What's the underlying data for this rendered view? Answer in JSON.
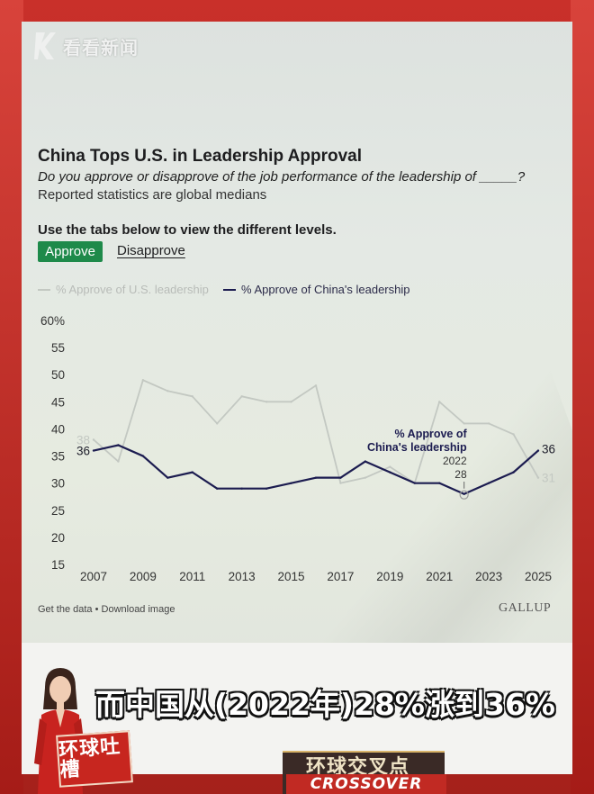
{
  "watermark": {
    "text": "看看新闻"
  },
  "chart_header": {
    "title": "China Tops U.S. in Leadership Approval",
    "question": "Do you approve or disapprove of the job performance of the leadership of _____?",
    "note": "Reported statistics are global medians",
    "instruction": "Use the tabs below to view the different levels."
  },
  "tabs": {
    "approve": "Approve",
    "disapprove": "Disapprove"
  },
  "footer": {
    "links": "Get the data • Download image",
    "brand": "GALLUP"
  },
  "caption": "而中国从(2022年)28%涨到36%",
  "program": {
    "badge": "环球吐槽",
    "brand_top": "环球交叉点",
    "brand_bottom": "CROSSOVER"
  },
  "colors": {
    "china": "#1c1c50",
    "us": "#c3c8c2",
    "approve_tab": "#1e8a4a",
    "frame": "#b8211c"
  },
  "chart_data": {
    "type": "line",
    "x": [
      2007,
      2008,
      2009,
      2010,
      2011,
      2012,
      2013,
      2014,
      2015,
      2016,
      2017,
      2018,
      2019,
      2020,
      2021,
      2022,
      2023,
      2024,
      2025
    ],
    "series": [
      {
        "name": "% Approve of U.S. leadership",
        "values": [
          38,
          34,
          49,
          47,
          46,
          41,
          46,
          45,
          45,
          48,
          30,
          31,
          33,
          30,
          45,
          41,
          41,
          39,
          31
        ]
      },
      {
        "name": "% Approve of China's leadership",
        "values": [
          36,
          37,
          35,
          31,
          32,
          29,
          29,
          29,
          30,
          31,
          31,
          34,
          32,
          30,
          30,
          28,
          30,
          32,
          36
        ]
      }
    ],
    "yticks": [
      "60%",
      "55",
      "50",
      "45",
      "40",
      "35",
      "30",
      "25",
      "20",
      "15"
    ],
    "xticks": [
      "2007",
      "2009",
      "2011",
      "2013",
      "2015",
      "2017",
      "2019",
      "2021",
      "2023",
      "2025"
    ],
    "ylim": [
      15,
      60
    ],
    "grid": false,
    "legend": "top-left",
    "labels": {
      "china_start": "36",
      "china_end": "36",
      "us_start": "38",
      "us_end": "31",
      "callout_title_1": "% Approve of",
      "callout_title_2": "China's leadership",
      "callout_year": "2022",
      "callout_value": "28"
    }
  }
}
